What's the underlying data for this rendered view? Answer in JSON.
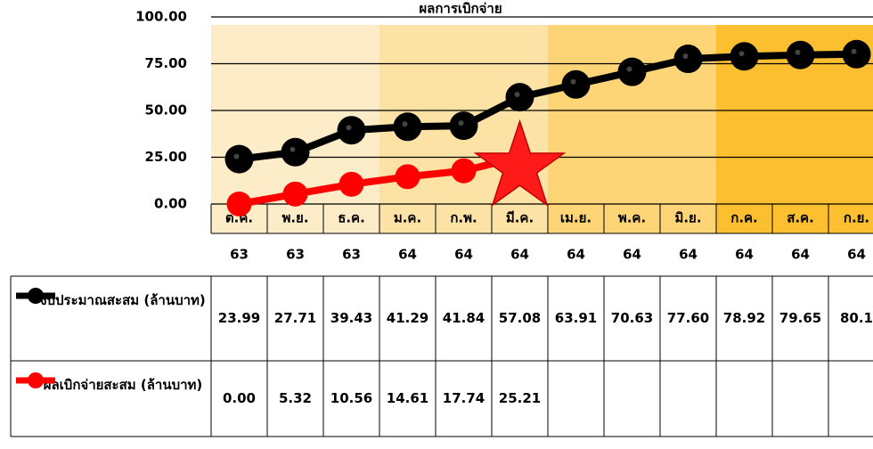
{
  "chart_data": {
    "type": "line",
    "title": "ผลการเบิกจ่าย",
    "categories": [
      "ต.ค.",
      "พ.ย.",
      "ธ.ค.",
      "ม.ค.",
      "ก.พ.",
      "มี.ค.",
      "เม.ย.",
      "พ.ค.",
      "มิ.ย.",
      "ก.ค.",
      "ส.ค.",
      "ก.ย."
    ],
    "category_years": [
      "63",
      "63",
      "63",
      "64",
      "64",
      "64",
      "64",
      "64",
      "64",
      "64",
      "64",
      "64"
    ],
    "series": [
      {
        "name": "งบประมาณสะสม (ล้านบาท)",
        "color": "#000000",
        "values": [
          23.99,
          27.71,
          39.43,
          41.29,
          41.84,
          57.08,
          63.91,
          70.63,
          77.6,
          78.92,
          79.65,
          80.1
        ],
        "value_labels": [
          "23.99",
          "27.71",
          "39.43",
          "41.29",
          "41.84",
          "57.08",
          "63.91",
          "70.63",
          "77.60",
          "78.92",
          "79.65",
          "80.1"
        ]
      },
      {
        "name": "ผลเบิกจ่ายสะสม (ล้านบาท)",
        "color": "#ff0000",
        "values": [
          0,
          5.32,
          10.56,
          14.61,
          17.74,
          25.21,
          null,
          null,
          null,
          null,
          null,
          null
        ],
        "value_labels": [
          "0.00",
          "5.32",
          "10.56",
          "14.61",
          "17.74",
          "25.21",
          null,
          null,
          null,
          null,
          null,
          null
        ]
      }
    ],
    "ylim": [
      0,
      100
    ],
    "yticks": [
      {
        "value": 0,
        "label": "0.00"
      },
      {
        "value": 25,
        "label": "25.00"
      },
      {
        "value": 50,
        "label": "50.00"
      },
      {
        "value": 75,
        "label": "75.00"
      },
      {
        "value": 100,
        "label": "100.00"
      }
    ],
    "grid": true
  }
}
